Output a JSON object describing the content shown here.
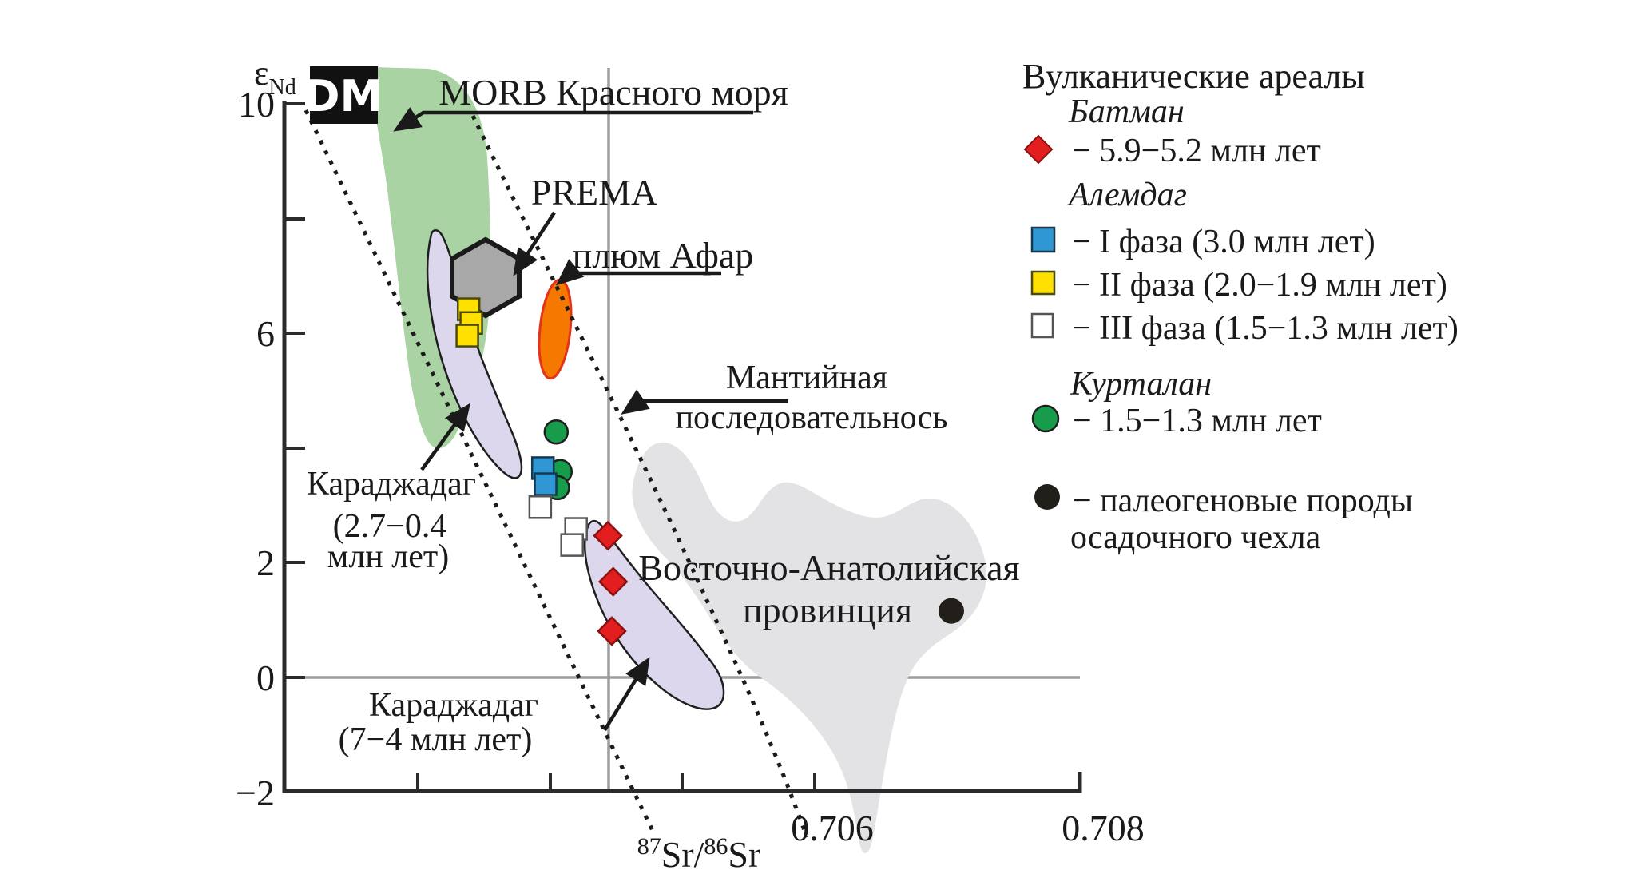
{
  "annotations": {
    "dm": "DM",
    "morb": "MORB Красного моря",
    "prema": "PREMA",
    "afar": "плюм Афар",
    "mantle_1": "Мантийная",
    "mantle_2": "последовательнось",
    "east_anatolia_1": "Восточно-Анатолийская",
    "east_anatolia_2": "провинция",
    "karajadag_young_1": "Караджадаг",
    "karajadag_young_2": "(2.7−0.4",
    "karajadag_young_3": "млн лет)",
    "karajadag_old_1": "Караджадаг",
    "karajadag_old_2": "(7−4 млн лет)"
  },
  "axis": {
    "y_label_main": "ε",
    "y_label_sub": "Nd",
    "x_label_sup1": "87",
    "x_label_mid": "Sr/",
    "x_label_sup2": "86",
    "x_label_end": "Sr",
    "y_tick_10": "10",
    "y_tick_6": "6",
    "y_tick_2": "2",
    "y_tick_0": "0",
    "y_tick_m2": "−2",
    "x_tick_706": "0.706",
    "x_tick_708": "0.708"
  },
  "legend": {
    "title": "Вулканические ареалы",
    "groups": [
      {
        "header": "Батман",
        "items": [
          {
            "id": "batman",
            "label": "− 5.9−5.2 млн лет",
            "marker": "diamond",
            "color": "#E21E1E"
          }
        ]
      },
      {
        "header": "Алемдаг",
        "items": [
          {
            "id": "alemdag-1",
            "label": "− I фаза (3.0 млн лет)",
            "marker": "square",
            "color": "#2E97D4"
          },
          {
            "id": "alemdag-2",
            "label": "− II фаза (2.0−1.9 млн лет)",
            "marker": "square",
            "color": "#FFE000"
          },
          {
            "id": "alemdag-3",
            "label": "− III фаза (1.5−1.3 млн лет)",
            "marker": "square",
            "color": "#FFFFFF"
          }
        ]
      },
      {
        "header": "Курталан",
        "items": [
          {
            "id": "kurtalan",
            "label": "− 1.5−1.3 млн лет",
            "marker": "circle",
            "color": "#169C4B"
          }
        ]
      },
      {
        "header": "",
        "items": [
          {
            "id": "paleogene",
            "label": "− палеогеновые породы",
            "label2": "осадочного чехла",
            "marker": "circle",
            "color": "#221F1A"
          }
        ]
      }
    ]
  },
  "chart_data": {
    "type": "scatter",
    "xlabel": "87Sr/86Sr",
    "ylabel": "epsilon Nd",
    "xlim": [
      0.702,
      0.708
    ],
    "ylim": [
      -2,
      10
    ],
    "x_ticks": [
      {
        "value": 0.703,
        "label": ""
      },
      {
        "value": 0.704,
        "label": ""
      },
      {
        "value": 0.705,
        "label": ""
      },
      {
        "value": 0.706,
        "label": "0.706"
      },
      {
        "value": 0.708,
        "label": "0.708"
      }
    ],
    "y_ticks": [
      {
        "value": 10,
        "label": "10"
      },
      {
        "value": 8,
        "label": ""
      },
      {
        "value": 6,
        "label": "6"
      },
      {
        "value": 4,
        "label": ""
      },
      {
        "value": 2,
        "label": "2"
      },
      {
        "value": 0,
        "label": "0"
      },
      {
        "value": -2,
        "label": "−2"
      }
    ],
    "reference_lines": {
      "vertical_sr": 0.70445,
      "horizontal_epsnd": 0
    },
    "series": [
      {
        "id": "kurtalan",
        "name": "Курталан 1.5−1.3 млн лет",
        "marker": "circle",
        "size": 29,
        "color": "#169C4B",
        "stroke": "#1f1f1f",
        "points": [
          [
            0.70405,
            4.28
          ],
          [
            0.70408,
            3.59
          ],
          [
            0.70406,
            3.31
          ]
        ]
      },
      {
        "id": "alemdag-1",
        "name": "Алемдаг I фаза (3.0 млн лет)",
        "marker": "square",
        "size": 27,
        "color": "#2E97D4",
        "stroke": "#17374d",
        "points": [
          [
            0.70395,
            3.65
          ],
          [
            0.70397,
            3.37
          ]
        ]
      },
      {
        "id": "alemdag-3",
        "name": "Алемдаг III фаза (1.5−1.3 млн лет)",
        "marker": "square",
        "size": 27,
        "color": "#FFFFFF",
        "stroke": "#555555",
        "points": [
          [
            0.70393,
            2.97
          ],
          [
            0.7042,
            2.59
          ],
          [
            0.70417,
            2.31
          ]
        ]
      },
      {
        "id": "alemdag-2",
        "name": "Алемдаг II фаза (2.0−1.9 млн лет)",
        "marker": "square",
        "size": 27,
        "color": "#FFE000",
        "stroke": "#4a4a10",
        "points": [
          [
            0.70339,
            6.42
          ],
          [
            0.70341,
            6.18
          ],
          [
            0.70338,
            5.96
          ]
        ]
      },
      {
        "id": "batman",
        "name": "Батман 5.9−5.2 млн лет",
        "marker": "diamond",
        "size": 34,
        "color": "#E21E1E",
        "stroke": "#8A1212",
        "points": [
          [
            0.70444,
            2.47
          ],
          [
            0.70448,
            1.67
          ],
          [
            0.70447,
            0.81
          ]
        ]
      },
      {
        "id": "paleogene",
        "name": "палеогеновые породы осадочного чехла",
        "marker": "circle",
        "size": 32,
        "color": "#221F1A",
        "stroke": "none",
        "points": [
          [
            0.70703,
            1.16
          ]
        ]
      }
    ],
    "fields": [
      {
        "id": "dm",
        "color": "#111111"
      },
      {
        "id": "morb-red-sea",
        "color": "#A9D3A2"
      },
      {
        "id": "prema-hexagon",
        "color": "#A8A8A8"
      },
      {
        "id": "afar-plume",
        "color": "#F57900"
      },
      {
        "id": "karajadag-young",
        "color": "#DCD7EC"
      },
      {
        "id": "karajadag-old",
        "color": "#DCD7EC"
      },
      {
        "id": "east-anatolian",
        "color": "#E3E3E5"
      }
    ],
    "legend_position": "right",
    "grid": false
  }
}
